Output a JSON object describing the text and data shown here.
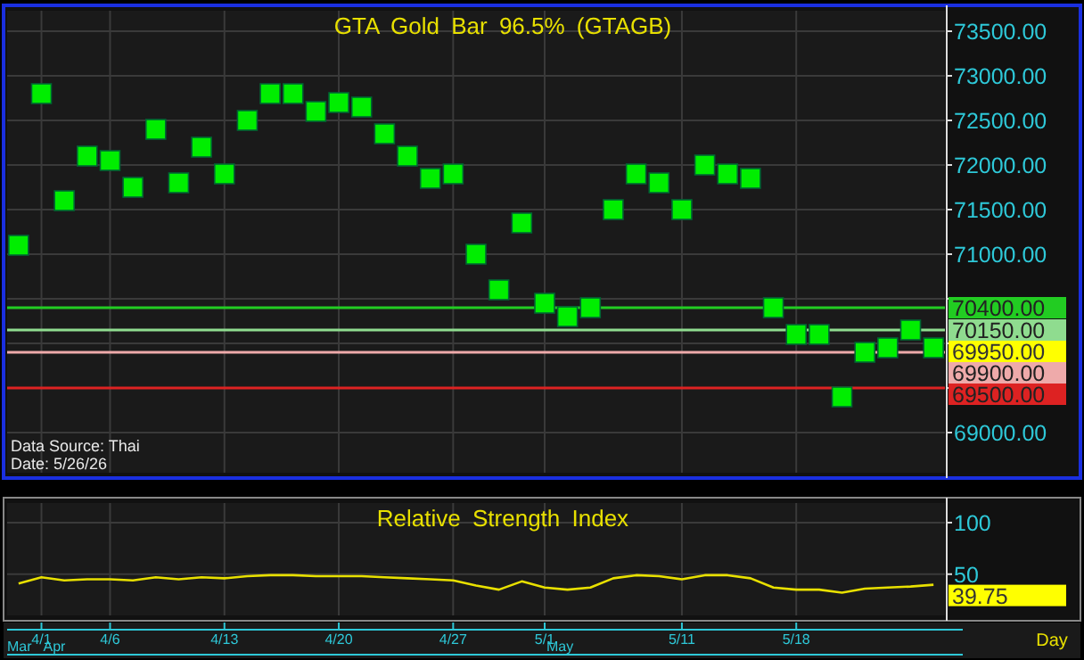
{
  "chart_data": [
    {
      "type": "scatter",
      "title": "GTA Gold Bar 96.5% (GTAGB)",
      "marker": "square",
      "color": "#00ee00",
      "grid": true,
      "tick_labels": "y",
      "categories": [
        null,
        null,
        null,
        null,
        null,
        null,
        null,
        null,
        null,
        null,
        null,
        null,
        null,
        null,
        null,
        null,
        null,
        null,
        null,
        null,
        null,
        null,
        null,
        null,
        null,
        null,
        null,
        null,
        null,
        null,
        null,
        null,
        null,
        null,
        null,
        null,
        null,
        null,
        null,
        null,
        null
      ],
      "values": [
        71100,
        72800,
        71600,
        72100,
        72050,
        71750,
        72400,
        71800,
        72200,
        71900,
        72500,
        72800,
        72800,
        72600,
        72700,
        72650,
        72350,
        72100,
        71850,
        71900,
        71000,
        70600,
        71350,
        70450,
        70300,
        70400,
        71500,
        71900,
        71800,
        71500,
        72000,
        71900,
        71850,
        70400,
        70100,
        70100,
        69400,
        69900,
        69950,
        70150,
        69950
      ],
      "value_labels": [
        null,
        null,
        null,
        null,
        null,
        null,
        null,
        null,
        null,
        null,
        null,
        null,
        null,
        null,
        null,
        null,
        null,
        null,
        null,
        null,
        null,
        null,
        null,
        null,
        null,
        null,
        null,
        null,
        null,
        null,
        null,
        null,
        null,
        null,
        null,
        null,
        null,
        null,
        null,
        null,
        "69950.00"
      ],
      "ylim": [
        68550,
        73730
      ],
      "yticks": [
        {
          "value": 69000,
          "label": "69000.00"
        },
        {
          "value": 69500,
          "label": null
        },
        {
          "value": 70000,
          "label": null
        },
        {
          "value": 70500,
          "label": null
        },
        {
          "value": 71000,
          "label": "71000.00"
        },
        {
          "value": 71500,
          "label": "71500.00"
        },
        {
          "value": 72000,
          "label": "72000.00"
        },
        {
          "value": 72500,
          "label": "72500.00"
        },
        {
          "value": 73000,
          "label": "73000.00"
        },
        {
          "value": 73500,
          "label": "73500.00"
        }
      ],
      "ref_lines": [
        {
          "axis": "y",
          "value": 70400,
          "label": "70400.00",
          "color": "#22cc22"
        },
        {
          "axis": "y",
          "value": 70150,
          "label": "70150.00",
          "color": "#8fdc8f"
        },
        {
          "axis": "y",
          "value": 69900,
          "label": "69900.00",
          "color": "#eeaaaa"
        },
        {
          "axis": "y",
          "value": 69500,
          "label": "69500.00",
          "color": "#dd2222"
        }
      ],
      "annotations": [
        "Data Source: Thai",
        "Date: 5/26/26"
      ]
    },
    {
      "type": "line",
      "title": "Relative Strength Index",
      "color": "#e8e000",
      "grid": true,
      "xlabel": "Day",
      "categories": [
        null,
        "4/1",
        null,
        null,
        "4/6",
        null,
        null,
        null,
        null,
        "4/13",
        null,
        null,
        null,
        null,
        "4/20",
        null,
        null,
        null,
        null,
        "4/27",
        null,
        null,
        null,
        "5/1",
        null,
        null,
        null,
        null,
        null,
        "5/11",
        null,
        null,
        null,
        null,
        "5/18",
        null,
        null,
        null,
        null,
        null,
        null
      ],
      "values": [
        41,
        47,
        44,
        45,
        45,
        44,
        47,
        45,
        47,
        46,
        48,
        49,
        49,
        48,
        48,
        48,
        47,
        46,
        45,
        44,
        39,
        35,
        43,
        37,
        35,
        37,
        46,
        49,
        48,
        45,
        49,
        49,
        46,
        37,
        35,
        35,
        32,
        36,
        37,
        38,
        39.75
      ],
      "value_labels": [
        null,
        null,
        null,
        null,
        null,
        null,
        null,
        null,
        null,
        null,
        null,
        null,
        null,
        null,
        null,
        null,
        null,
        null,
        null,
        null,
        null,
        null,
        null,
        null,
        null,
        null,
        null,
        null,
        null,
        null,
        null,
        null,
        null,
        null,
        null,
        null,
        null,
        null,
        null,
        null,
        "39.75"
      ],
      "ylim": [
        10,
        119
      ],
      "yticks": [
        100,
        50
      ],
      "annotations": [
        "Mar",
        "Apr",
        "May"
      ]
    }
  ]
}
